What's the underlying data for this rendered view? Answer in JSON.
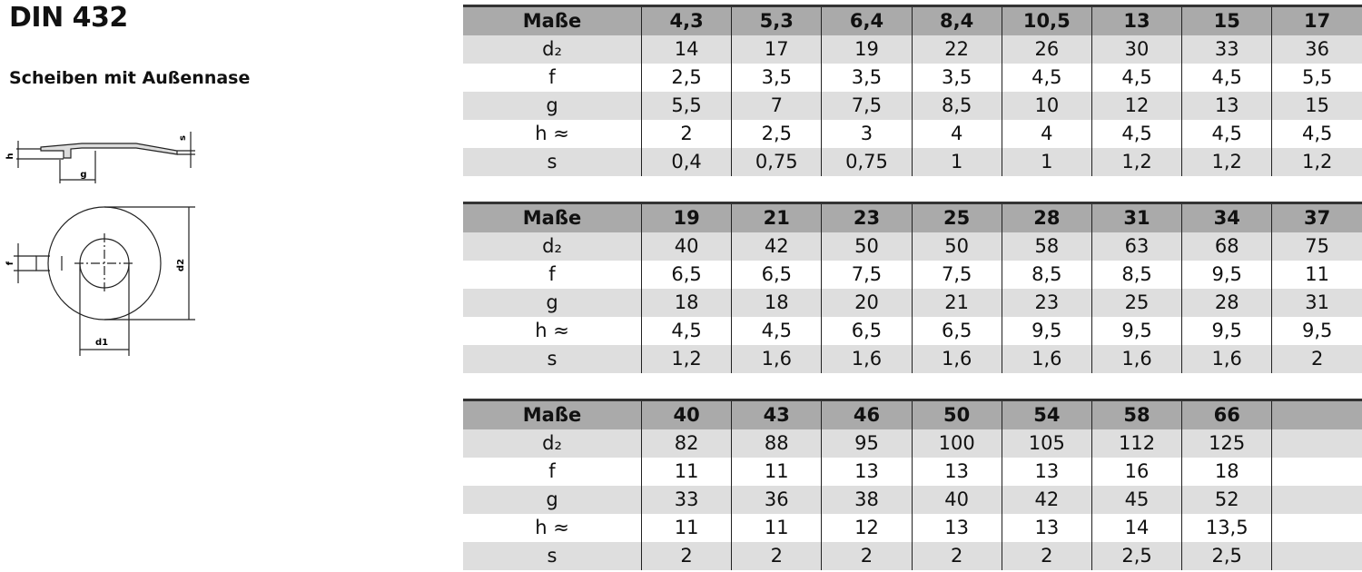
{
  "header": {
    "title": "DIN 432",
    "subtitle": "Scheiben mit Außennase"
  },
  "drawing": {
    "labels": [
      "s",
      "h",
      "g",
      "f",
      "d2",
      "d1"
    ]
  },
  "tables": [
    {
      "header": [
        "Maße",
        "4,3",
        "5,3",
        "6,4",
        "8,4",
        "10,5",
        "13",
        "15",
        "17"
      ],
      "rows": [
        {
          "label": "d₂",
          "values": [
            "14",
            "17",
            "19",
            "22",
            "26",
            "30",
            "33",
            "36"
          ]
        },
        {
          "label": "f",
          "values": [
            "2,5",
            "3,5",
            "3,5",
            "3,5",
            "4,5",
            "4,5",
            "4,5",
            "5,5"
          ]
        },
        {
          "label": "g",
          "values": [
            "5,5",
            "7",
            "7,5",
            "8,5",
            "10",
            "12",
            "13",
            "15"
          ]
        },
        {
          "label": "h ≈",
          "values": [
            "2",
            "2,5",
            "3",
            "4",
            "4",
            "4,5",
            "4,5",
            "4,5"
          ]
        },
        {
          "label": "s",
          "values": [
            "0,4",
            "0,75",
            "0,75",
            "1",
            "1",
            "1,2",
            "1,2",
            "1,2"
          ]
        }
      ]
    },
    {
      "header": [
        "Maße",
        "19",
        "21",
        "23",
        "25",
        "28",
        "31",
        "34",
        "37"
      ],
      "rows": [
        {
          "label": "d₂",
          "values": [
            "40",
            "42",
            "50",
            "50",
            "58",
            "63",
            "68",
            "75"
          ]
        },
        {
          "label": "f",
          "values": [
            "6,5",
            "6,5",
            "7,5",
            "7,5",
            "8,5",
            "8,5",
            "9,5",
            "11"
          ]
        },
        {
          "label": "g",
          "values": [
            "18",
            "18",
            "20",
            "21",
            "23",
            "25",
            "28",
            "31"
          ]
        },
        {
          "label": "h ≈",
          "values": [
            "4,5",
            "4,5",
            "6,5",
            "6,5",
            "9,5",
            "9,5",
            "9,5",
            "9,5"
          ]
        },
        {
          "label": "s",
          "values": [
            "1,2",
            "1,6",
            "1,6",
            "1,6",
            "1,6",
            "1,6",
            "1,6",
            "2"
          ]
        }
      ]
    },
    {
      "header": [
        "Maße",
        "40",
        "43",
        "46",
        "50",
        "54",
        "58",
        "66"
      ],
      "rows": [
        {
          "label": "d₂",
          "values": [
            "82",
            "88",
            "95",
            "100",
            "105",
            "112",
            "125"
          ]
        },
        {
          "label": "f",
          "values": [
            "11",
            "11",
            "13",
            "13",
            "13",
            "16",
            "18"
          ]
        },
        {
          "label": "g",
          "values": [
            "33",
            "36",
            "38",
            "40",
            "42",
            "45",
            "52"
          ]
        },
        {
          "label": "h ≈",
          "values": [
            "11",
            "11",
            "12",
            "13",
            "13",
            "14",
            "13,5"
          ]
        },
        {
          "label": "s",
          "values": [
            "2",
            "2",
            "2",
            "2",
            "2",
            "2,5",
            "2,5"
          ]
        }
      ]
    }
  ]
}
